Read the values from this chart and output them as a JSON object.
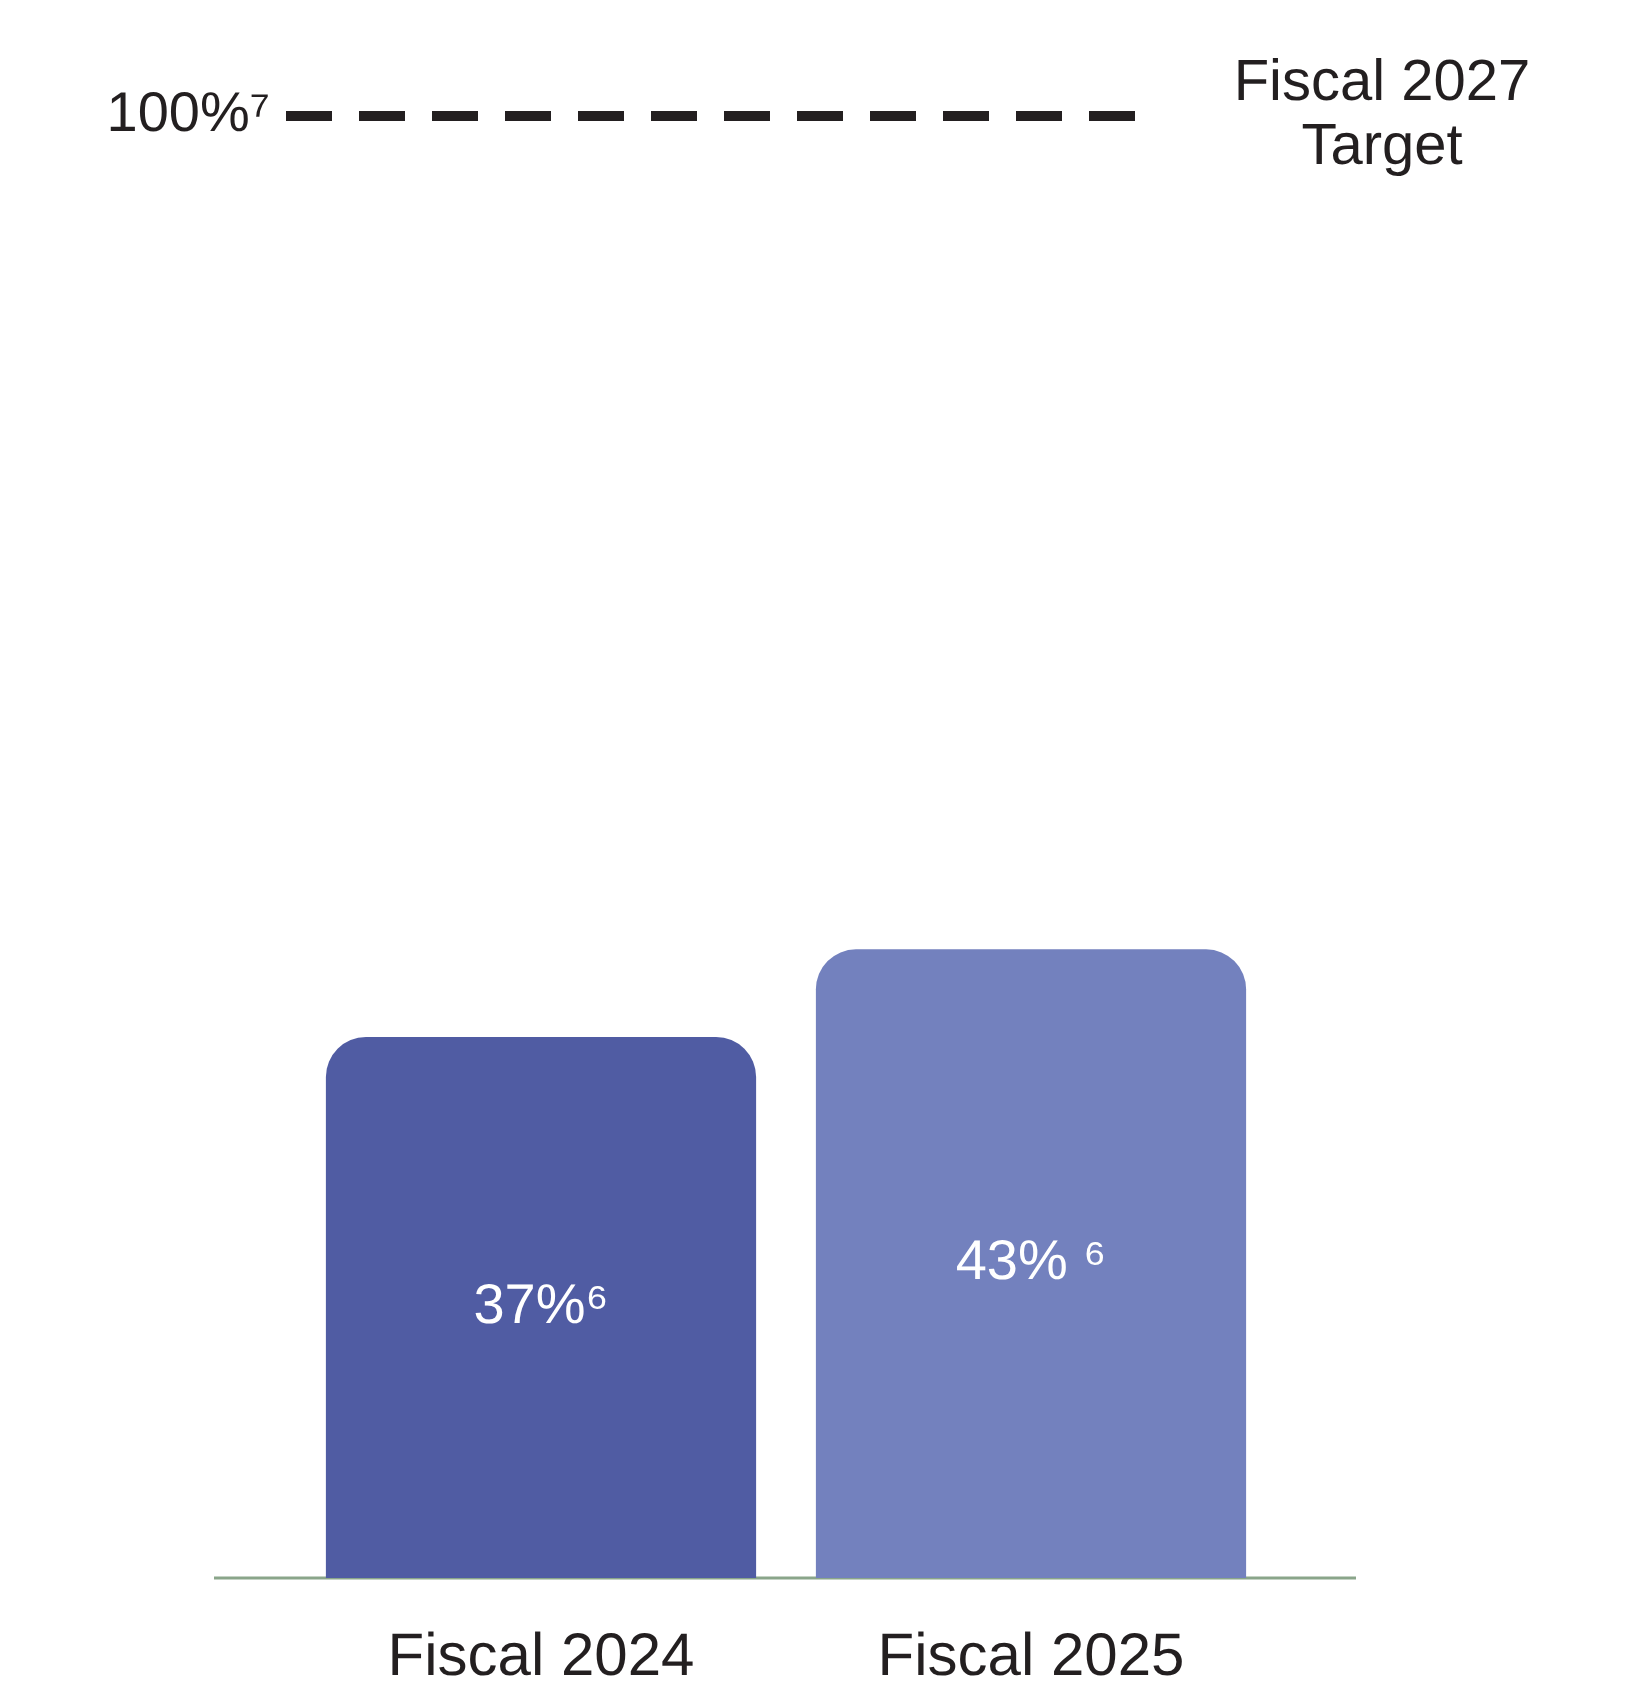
{
  "chart_data": {
    "type": "bar",
    "categories": [
      "Fiscal 2024",
      "Fiscal 2025"
    ],
    "values": [
      37,
      43
    ],
    "colors": [
      "#505ca3",
      "#7381be"
    ],
    "value_labels": [
      "37%⁶",
      "43% ⁶"
    ],
    "ylim": [
      0,
      100
    ],
    "yticks": [
      {
        "value": 100,
        "label": "100%⁷"
      }
    ],
    "ref_lines": [
      {
        "axis": "y",
        "value": 100,
        "label": "Fiscal 2027 Target",
        "color": "#231f20",
        "line_style": "dashed"
      }
    ],
    "grid": false,
    "legend": false
  }
}
